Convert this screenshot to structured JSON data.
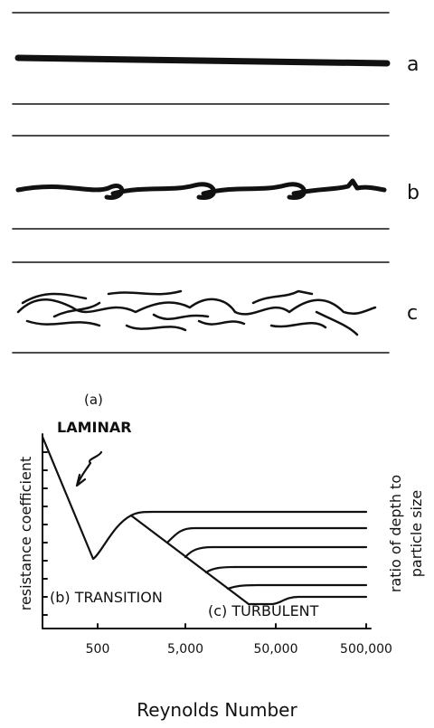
{
  "flows": [
    {
      "label": "a"
    },
    {
      "label": "b"
    },
    {
      "label": "c"
    }
  ],
  "graph": {
    "regions": [
      "(a)",
      "LAMINAR",
      "(b) TRANSITION",
      "(c) TURBULENT"
    ],
    "y_label": "resistance coefficient",
    "right_label": [
      "ratio of depth to",
      "particle size"
    ],
    "x_ticks": [
      "500",
      "5,000",
      "50,000",
      "500,000"
    ],
    "x_label": "Reynolds Number"
  }
}
